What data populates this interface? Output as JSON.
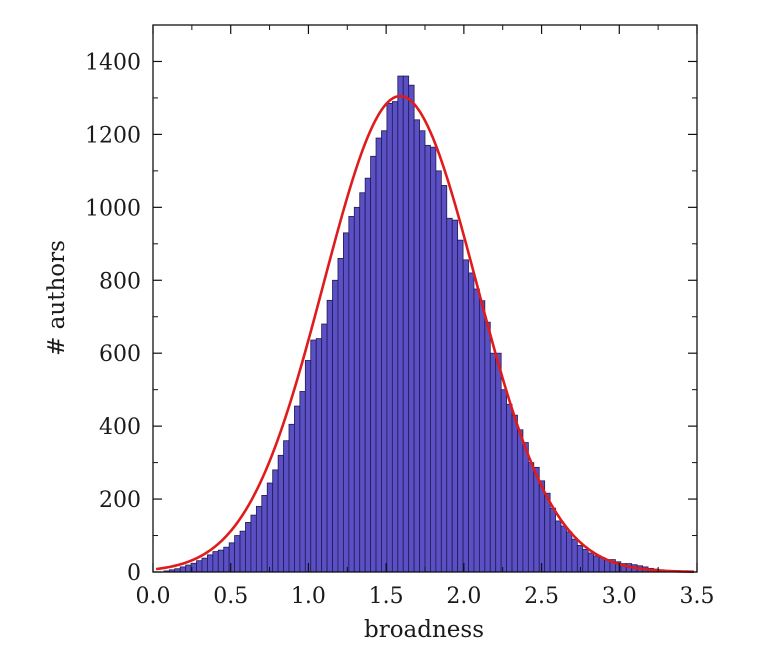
{
  "chart_data": {
    "type": "bar",
    "title": "",
    "xlabel": "broadness",
    "ylabel": "# authors",
    "xlim": [
      0.0,
      3.5
    ],
    "ylim": [
      0,
      1500
    ],
    "x_ticks": [
      "0.0",
      "0.5",
      "1.0",
      "1.5",
      "2.0",
      "2.5",
      "3.0",
      "3.5"
    ],
    "y_ticks": [
      "0",
      "200",
      "400",
      "600",
      "800",
      "1000",
      "1200",
      "1400"
    ],
    "grid": false,
    "legend": "none",
    "bin_width": 0.035,
    "bins_start": [
      0.07,
      0.105,
      0.14,
      0.175,
      0.21,
      0.245,
      0.28,
      0.315,
      0.35,
      0.385,
      0.42,
      0.455,
      0.49,
      0.525,
      0.56,
      0.595,
      0.63,
      0.665,
      0.7,
      0.735,
      0.77,
      0.805,
      0.84,
      0.875,
      0.91,
      0.945,
      0.98,
      1.015,
      1.05,
      1.085,
      1.12,
      1.155,
      1.19,
      1.225,
      1.26,
      1.295,
      1.33,
      1.365,
      1.4,
      1.435,
      1.47,
      1.505,
      1.54,
      1.575,
      1.61,
      1.645,
      1.68,
      1.715,
      1.75,
      1.785,
      1.82,
      1.855,
      1.89,
      1.925,
      1.96,
      1.995,
      2.03,
      2.065,
      2.1,
      2.135,
      2.17,
      2.205,
      2.24,
      2.275,
      2.31,
      2.345,
      2.38,
      2.415,
      2.45,
      2.485,
      2.52,
      2.555,
      2.59,
      2.625,
      2.66,
      2.695,
      2.73,
      2.765,
      2.8,
      2.835,
      2.87,
      2.905,
      2.94,
      2.975,
      3.01,
      3.045,
      3.08,
      3.115,
      3.15,
      3.185,
      3.22,
      3.255,
      3.29,
      3.325,
      3.36,
      3.395,
      3.43
    ],
    "counts": [
      3,
      6,
      9,
      14,
      19,
      24,
      31,
      38,
      47,
      56,
      60,
      68,
      80,
      100,
      112,
      136,
      156,
      180,
      210,
      244,
      280,
      320,
      360,
      405,
      455,
      495,
      580,
      636,
      640,
      680,
      745,
      800,
      860,
      930,
      975,
      1000,
      1040,
      1080,
      1140,
      1190,
      1210,
      1285,
      1290,
      1360,
      1360,
      1335,
      1240,
      1210,
      1170,
      1165,
      1100,
      1060,
      970,
      965,
      910,
      856,
      820,
      776,
      744,
      685,
      600,
      600,
      500,
      460,
      430,
      390,
      355,
      300,
      287,
      250,
      216,
      175,
      140,
      126,
      110,
      90,
      73,
      62,
      52,
      44,
      40,
      34,
      34,
      28,
      23,
      23,
      20,
      17,
      14,
      10,
      8,
      6,
      4,
      3,
      2,
      1,
      1
    ],
    "colors": {
      "bar_fill": "#5b4fc4",
      "bar_edge": "#1f1a55",
      "fit_line": "#e01b1b"
    },
    "fit": {
      "type": "gaussian",
      "peak": 1305,
      "mean": 1.59,
      "sigma": 0.492
    }
  }
}
